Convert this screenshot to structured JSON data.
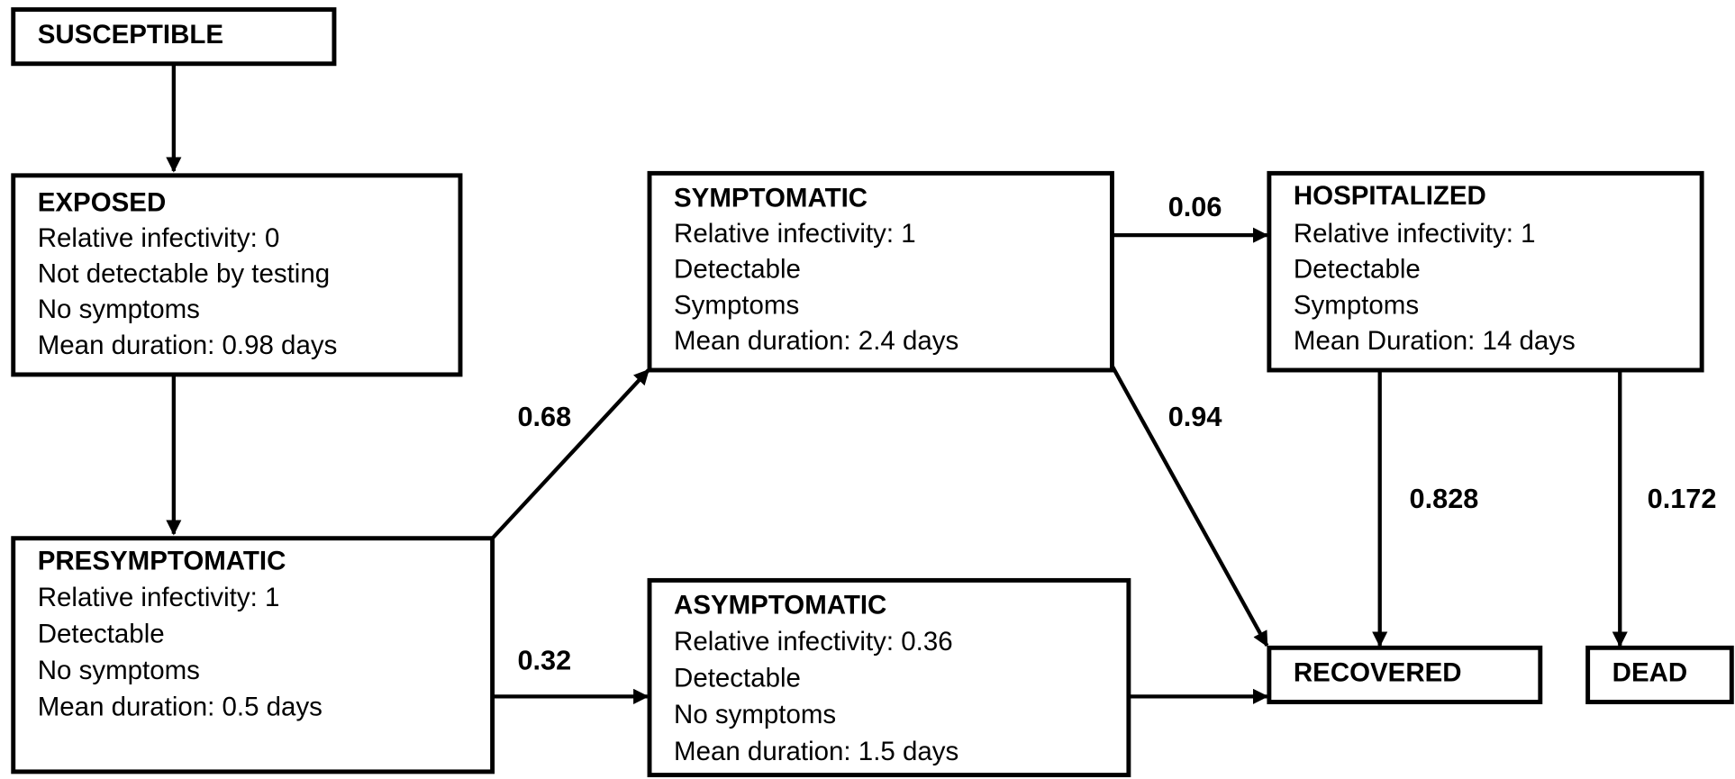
{
  "nodes": [
    {
      "title": "SUSCEPTIBLE",
      "lines": []
    },
    {
      "title": "EXPOSED",
      "lines": [
        "Relative infectivity: 0",
        "Not detectable by testing",
        "No symptoms",
        "Mean duration: 0.98 days"
      ]
    },
    {
      "title": "PRESYMPTOMATIC",
      "lines": [
        "Relative infectivity: 1",
        "Detectable",
        "No symptoms",
        "Mean duration: 0.5 days"
      ]
    },
    {
      "title": "SYMPTOMATIC",
      "lines": [
        "Relative infectivity: 1",
        "Detectable",
        "Symptoms",
        "Mean duration: 2.4 days"
      ]
    },
    {
      "title": "ASYMPTOMATIC",
      "lines": [
        "Relative infectivity: 0.36",
        "Detectable",
        "No symptoms",
        "Mean duration: 1.5 days"
      ]
    },
    {
      "title": "HOSPITALIZED",
      "lines": [
        "Relative infectivity: 1",
        "Detectable",
        "Symptoms",
        "Mean Duration: 14 days"
      ]
    },
    {
      "title": "RECOVERED",
      "lines": []
    },
    {
      "title": "DEAD",
      "lines": []
    }
  ],
  "edges": [
    {
      "label": "0.68"
    },
    {
      "label": "0.32"
    },
    {
      "label": "0.06"
    },
    {
      "label": "0.94"
    },
    {
      "label": "0.828"
    },
    {
      "label": "0.172"
    }
  ]
}
